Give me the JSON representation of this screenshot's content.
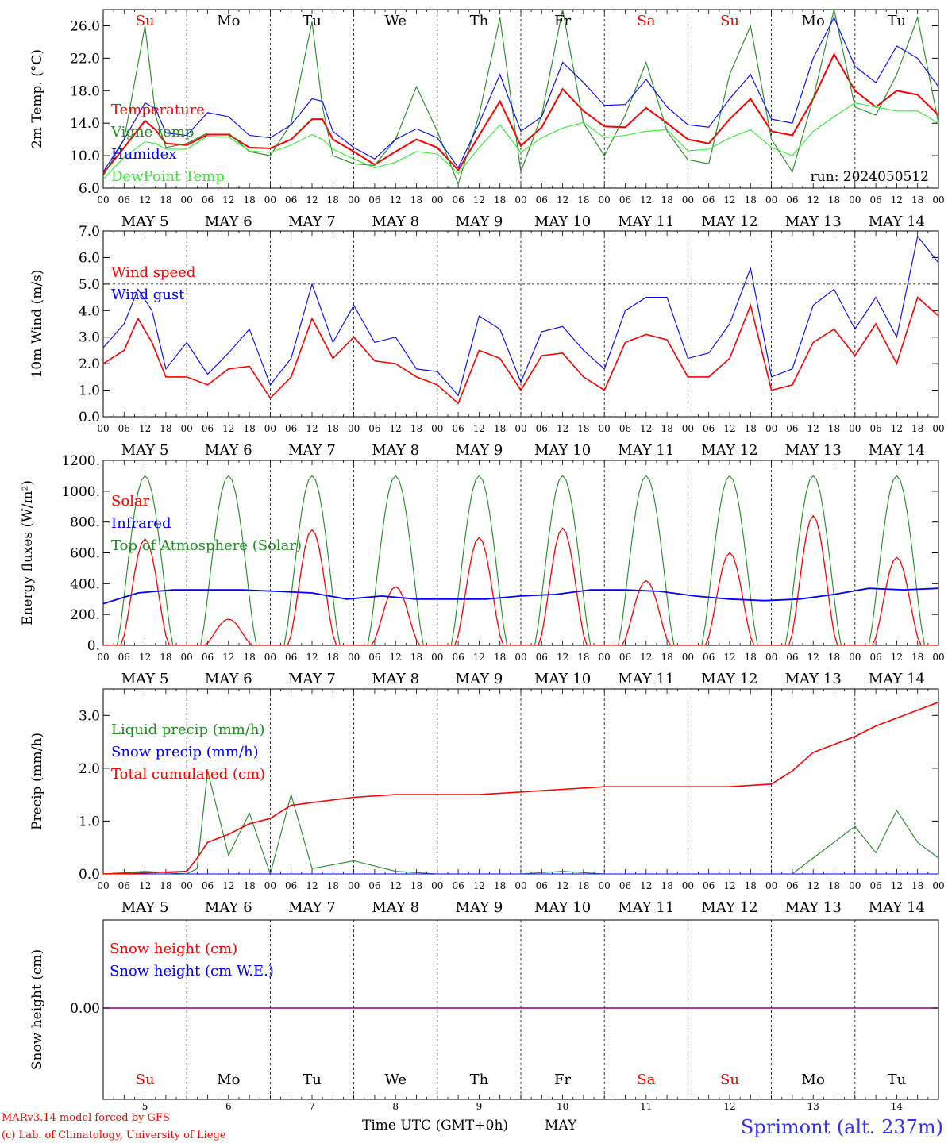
{
  "run_label": "run: 2024050512",
  "footer": {
    "model": "MARv3.14 model forced by GFS",
    "copyright": "(c) Lab. of Climatology, University of Liege",
    "time_axis": "Time UTC (GMT+0h)",
    "month": "MAY",
    "station": "Sprimont (alt. 237m)"
  },
  "colors": {
    "red": "#ff0000",
    "green": "#228b22",
    "blue": "#0000ff",
    "lime": "#33ee33",
    "purple": "#800080"
  },
  "day_names": [
    "Su",
    "Mo",
    "Tu",
    "We",
    "Th",
    "Fr",
    "Sa",
    "Su",
    "Mo",
    "Tu"
  ],
  "day_name_colors": [
    "red",
    "black",
    "black",
    "black",
    "black",
    "black",
    "red",
    "red",
    "black",
    "black"
  ],
  "date_labels": [
    "MAY  5",
    "MAY  6",
    "MAY  7",
    "MAY  8",
    "MAY  9",
    "MAY 10",
    "MAY 11",
    "MAY 12",
    "MAY 13",
    "MAY 14"
  ],
  "day_numbers": [
    "5",
    "6",
    "7",
    "8",
    "9",
    "10",
    "11",
    "12",
    "13",
    "14"
  ],
  "hour_labels": [
    "00",
    "06",
    "12",
    "18"
  ],
  "chart_data": [
    {
      "type": "line",
      "ylabel": "2m Temp. (°C)",
      "ylim": [
        6,
        28
      ],
      "yticks": [
        6,
        10,
        14,
        18,
        22,
        26
      ],
      "ytick_labels": [
        "6.0",
        "10.0",
        "14.0",
        "18.0",
        "22.0",
        "26.0"
      ],
      "x_unit": "hours since May 5 00 UTC",
      "x": [
        0,
        6,
        12,
        15,
        18,
        24,
        30,
        36,
        42,
        48,
        54,
        60,
        63,
        66,
        72,
        78,
        84,
        90,
        96,
        102,
        108,
        114,
        120,
        126,
        132,
        138,
        144,
        150,
        156,
        162,
        168,
        174,
        180,
        186,
        192,
        198,
        204,
        210,
        216,
        222,
        228,
        234,
        240
      ],
      "series": [
        {
          "name": "Temperature",
          "color": "red",
          "values": [
            7.8,
            11,
            14.3,
            13.2,
            11.5,
            11.3,
            12.6,
            12.6,
            11,
            10.9,
            12,
            14.5,
            14.5,
            12,
            10.5,
            8.9,
            10.5,
            12,
            11,
            8.2,
            12.5,
            16.7,
            11.2,
            13.5,
            18.2,
            15.5,
            13.6,
            13.5,
            15.9,
            14,
            12,
            11.5,
            14.5,
            17,
            13,
            12.5,
            17,
            22.5,
            18,
            16,
            18,
            17.5,
            15
          ]
        },
        {
          "name": "Vigne temp",
          "color": "green",
          "values": [
            7.5,
            12,
            26,
            15,
            11,
            11.5,
            12.8,
            12.8,
            10.5,
            10,
            14,
            26.5,
            16,
            10,
            9,
            8.8,
            12,
            18.5,
            13,
            6.5,
            15,
            27,
            8,
            15,
            28,
            14,
            10,
            15,
            21.5,
            13,
            9.5,
            9,
            20,
            26,
            12,
            8,
            17,
            28,
            16,
            15,
            20,
            27,
            14
          ]
        },
        {
          "name": "Humidex",
          "color": "blue",
          "values": [
            8,
            12,
            16.5,
            15.8,
            12.8,
            12.5,
            15.3,
            14.8,
            12.5,
            12.2,
            13.8,
            17,
            16.7,
            13,
            11,
            9.6,
            12,
            13.3,
            12.2,
            8.5,
            14,
            20,
            13,
            14.8,
            21.5,
            19,
            16.2,
            16.3,
            19.4,
            16,
            13.8,
            13.5,
            17,
            20,
            14.5,
            14,
            22,
            27,
            21,
            19,
            23.5,
            22,
            18.5
          ]
        },
        {
          "name": "DewPoint Temp",
          "color": "lime",
          "values": [
            7.1,
            9.8,
            11.7,
            11.5,
            10.8,
            10.8,
            12.4,
            12.3,
            10.6,
            10.4,
            11.3,
            12.6,
            12,
            10.8,
            9.6,
            8.5,
            9.2,
            10.5,
            10.2,
            7.8,
            11,
            13.8,
            10.4,
            12.2,
            13.4,
            14.1,
            12.2,
            12.5,
            13,
            13.2,
            10.6,
            10.8,
            12.2,
            13.2,
            11,
            10,
            13,
            14.8,
            16.5,
            16,
            15.5,
            15.5,
            14
          ]
        }
      ],
      "legend_placement": "left"
    },
    {
      "type": "line",
      "ylabel": "10m Wind (m/s)",
      "ylim": [
        0,
        7
      ],
      "yticks": [
        0,
        1,
        2,
        3,
        4,
        5,
        6,
        7
      ],
      "ytick_labels": [
        "0.0",
        "1.0",
        "2.0",
        "3.0",
        "4.0",
        "5.0",
        "6.0",
        "7.0"
      ],
      "reference_line": 5,
      "x": [
        0,
        6,
        10,
        14,
        18,
        24,
        30,
        36,
        42,
        48,
        54,
        60,
        66,
        72,
        78,
        84,
        90,
        96,
        102,
        108,
        114,
        120,
        126,
        132,
        138,
        144,
        150,
        156,
        162,
        168,
        174,
        180,
        186,
        192,
        198,
        204,
        210,
        216,
        222,
        228,
        234,
        240
      ],
      "series": [
        {
          "name": "Wind speed",
          "color": "red",
          "values": [
            2,
            2.5,
            3.7,
            2.8,
            1.5,
            1.5,
            1.2,
            1.8,
            1.9,
            0.7,
            1.5,
            3.7,
            2.2,
            3,
            2.1,
            2,
            1.5,
            1.2,
            0.5,
            2.5,
            2.2,
            1,
            2.3,
            2.4,
            1.5,
            1,
            2.8,
            3.1,
            2.9,
            1.5,
            1.5,
            2.2,
            4.2,
            1,
            1.2,
            2.8,
            3.3,
            2.3,
            3.5,
            2,
            4.5,
            3.8
          ]
        },
        {
          "name": "Wind gust",
          "color": "blue",
          "values": [
            2.6,
            3.5,
            4.8,
            4,
            1.8,
            2.8,
            1.6,
            2.4,
            3.3,
            1.2,
            2.2,
            5,
            2.8,
            4.2,
            2.8,
            3,
            1.8,
            1.7,
            0.8,
            3.8,
            3.3,
            1.3,
            3.2,
            3.4,
            2.5,
            1.8,
            4,
            4.5,
            4.5,
            2.2,
            2.4,
            3.5,
            5.6,
            1.5,
            1.8,
            4.2,
            4.8,
            3.3,
            4.5,
            3,
            6.8,
            5.8
          ]
        }
      ],
      "legend_placement": "left"
    },
    {
      "type": "line",
      "ylabel": "Energy fluxes (W/m²)",
      "ylim": [
        0,
        1200
      ],
      "yticks": [
        0,
        200,
        400,
        600,
        800,
        1000,
        1200
      ],
      "ytick_labels": [
        "0.",
        "200.",
        "400.",
        "600.",
        "800.",
        "1000.",
        "1200."
      ],
      "daily_peak_toa": 1100,
      "daily_peak_solar": [
        690,
        170,
        750,
        380,
        700,
        760,
        420,
        600,
        840,
        570
      ],
      "infrared_values": [
        270,
        340,
        360,
        360,
        360,
        350,
        340,
        300,
        320,
        300,
        300,
        300,
        320,
        330,
        360,
        360,
        350,
        320,
        300,
        290,
        300,
        330,
        370,
        360,
        370
      ],
      "series": [
        {
          "name": "Solar",
          "color": "red"
        },
        {
          "name": "Infrared",
          "color": "blue"
        },
        {
          "name": "Top of Atmosphere (Solar)",
          "color": "green"
        }
      ],
      "legend_placement": "left"
    },
    {
      "type": "line",
      "ylabel": "Precip (mm/h)",
      "ylim": [
        0,
        3.5
      ],
      "yticks": [
        0,
        1,
        2,
        3
      ],
      "ytick_labels": [
        "0.0",
        "1.0",
        "2.0",
        "3.0"
      ],
      "x": [
        0,
        12,
        24,
        27,
        30,
        36,
        42,
        48,
        54,
        60,
        72,
        84,
        96,
        108,
        120,
        132,
        144,
        156,
        168,
        180,
        192,
        198,
        204,
        210,
        216,
        222,
        228,
        234,
        240
      ],
      "series": [
        {
          "name": "Liquid precip (mm/h)",
          "color": "green",
          "values": [
            0,
            0.05,
            0,
            0.1,
            1.95,
            0.35,
            1.15,
            0,
            1.5,
            0.1,
            0.25,
            0.05,
            0,
            0,
            0,
            0.05,
            0,
            0,
            0,
            0,
            0,
            0,
            0.3,
            0.6,
            0.9,
            0.4,
            1.2,
            0.6,
            0.3
          ]
        },
        {
          "name": "Snow precip (mm/h)",
          "color": "blue",
          "values": [
            0,
            0,
            0,
            0,
            0,
            0,
            0,
            0,
            0,
            0,
            0,
            0,
            0,
            0,
            0,
            0,
            0,
            0,
            0,
            0,
            0,
            0,
            0,
            0,
            0,
            0,
            0,
            0,
            0
          ]
        },
        {
          "name": "Total cumulated (cm)",
          "color": "red",
          "values": [
            0,
            0.02,
            0.05,
            0.3,
            0.6,
            0.75,
            0.95,
            1.05,
            1.3,
            1.35,
            1.45,
            1.5,
            1.5,
            1.5,
            1.55,
            1.6,
            1.65,
            1.65,
            1.65,
            1.65,
            1.7,
            1.95,
            2.3,
            2.45,
            2.6,
            2.8,
            2.95,
            3.1,
            3.25
          ]
        }
      ],
      "legend_placement": "left"
    },
    {
      "type": "line",
      "ylabel": "Snow height (cm)",
      "ytick_labels": [
        "0.00"
      ],
      "series": [
        {
          "name": "Snow height (cm)",
          "color": "red",
          "values": [
            0,
            0
          ]
        },
        {
          "name": "Snow height (cm W.E.)",
          "color": "blue",
          "values": [
            0,
            0
          ]
        }
      ],
      "legend_placement": "left"
    }
  ]
}
